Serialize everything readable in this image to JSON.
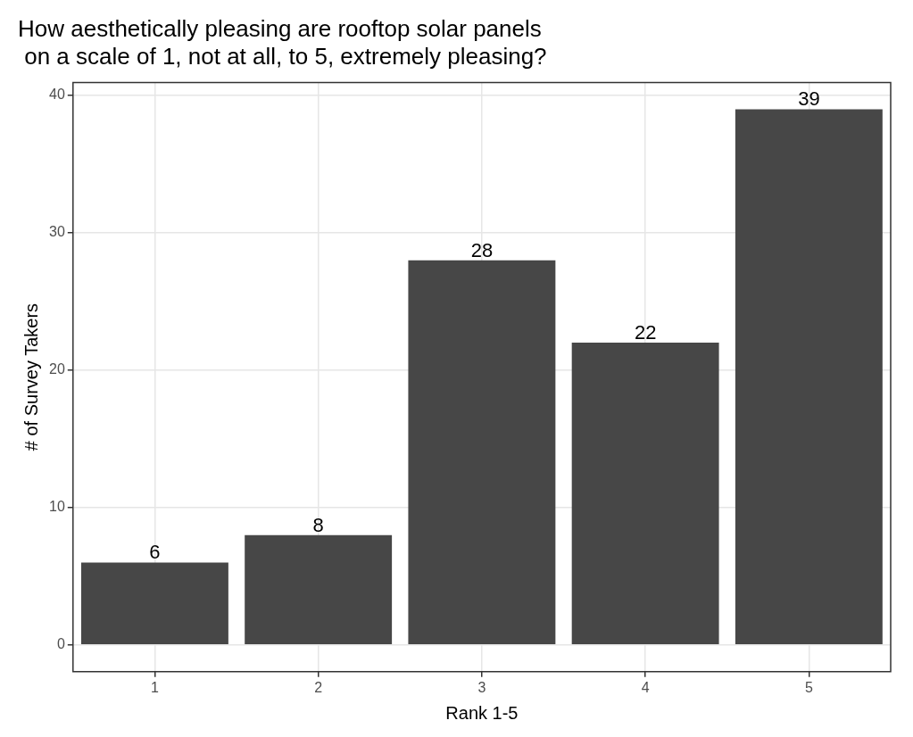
{
  "chart_data": {
    "type": "bar",
    "title": "How aesthetically pleasing are rooftop solar panels\n on a scale of 1, not at all, to 5, extremely pleasing?",
    "xlabel": "Rank 1-5",
    "ylabel": "# of Survey Takers",
    "categories": [
      "1",
      "2",
      "3",
      "4",
      "5"
    ],
    "values": [
      6,
      8,
      28,
      22,
      39
    ],
    "color": "#474747",
    "ylim": [
      -1.95,
      40.95
    ],
    "yticks": [
      0,
      10,
      20,
      30,
      40
    ],
    "grid": true,
    "data_labels": true,
    "legend": false
  }
}
